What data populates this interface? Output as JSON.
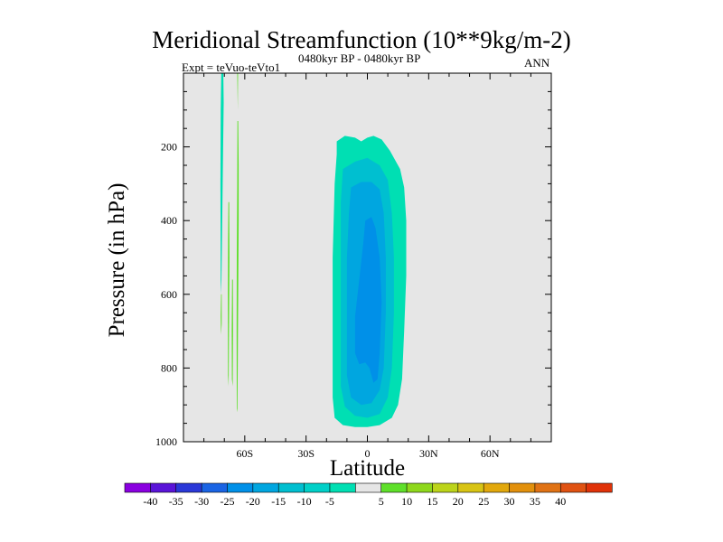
{
  "chart_data": {
    "type": "contour",
    "title": "Meridional Streamfunction (10**9kg/m-2)",
    "subtitle": "0480kyr BP - 0480kyr BP",
    "left_label": "Expt = teVuo-teVto1",
    "right_label": "ANN",
    "xlabel": "Latitude",
    "ylabel": "Pressure (in hPa)",
    "xlim": [
      -90,
      90
    ],
    "ylim": [
      1000,
      0
    ],
    "x_ticks": [
      {
        "value": -60,
        "label": "60S"
      },
      {
        "value": -30,
        "label": "30S"
      },
      {
        "value": 0,
        "label": "0"
      },
      {
        "value": 30,
        "label": "30N"
      },
      {
        "value": 60,
        "label": "60N"
      }
    ],
    "y_ticks": [
      {
        "value": 200,
        "label": "200"
      },
      {
        "value": 400,
        "label": "400"
      },
      {
        "value": 600,
        "label": "600"
      },
      {
        "value": 800,
        "label": "800"
      },
      {
        "value": 1000,
        "label": "1000"
      }
    ],
    "background_color": "#e6e6e6",
    "contour_regions": [
      {
        "level": -10,
        "color": "#00dfb3",
        "points": [
          [
            -15,
            185
          ],
          [
            -11,
            170
          ],
          [
            -6,
            175
          ],
          [
            -3,
            185
          ],
          [
            0,
            175
          ],
          [
            3,
            170
          ],
          [
            7,
            180
          ],
          [
            11,
            210
          ],
          [
            16,
            260
          ],
          [
            18,
            310
          ],
          [
            19,
            400
          ],
          [
            19,
            550
          ],
          [
            18,
            700
          ],
          [
            17,
            830
          ],
          [
            15,
            900
          ],
          [
            12,
            935
          ],
          [
            6,
            955
          ],
          [
            0,
            960
          ],
          [
            -6,
            960
          ],
          [
            -12,
            955
          ],
          [
            -16,
            935
          ],
          [
            -17,
            880
          ],
          [
            -17,
            700
          ],
          [
            -17,
            500
          ],
          [
            -16,
            300
          ],
          [
            -15,
            220
          ]
        ]
      },
      {
        "level": -15,
        "color": "#00bfd0",
        "points": [
          [
            -12,
            260
          ],
          [
            -6,
            240
          ],
          [
            0,
            230
          ],
          [
            6,
            250
          ],
          [
            10,
            290
          ],
          [
            12,
            380
          ],
          [
            13,
            500
          ],
          [
            13,
            650
          ],
          [
            12,
            800
          ],
          [
            10,
            880
          ],
          [
            6,
            925
          ],
          [
            0,
            935
          ],
          [
            -6,
            930
          ],
          [
            -11,
            905
          ],
          [
            -13,
            850
          ],
          [
            -13,
            700
          ],
          [
            -13,
            500
          ],
          [
            -13,
            350
          ]
        ]
      },
      {
        "level": -20,
        "color": "#00a6e0",
        "points": [
          [
            -8,
            310
          ],
          [
            -3,
            295
          ],
          [
            2,
            295
          ],
          [
            6,
            315
          ],
          [
            8,
            380
          ],
          [
            9,
            500
          ],
          [
            9,
            650
          ],
          [
            8,
            800
          ],
          [
            6,
            860
          ],
          [
            2,
            895
          ],
          [
            -3,
            900
          ],
          [
            -8,
            880
          ],
          [
            -10,
            820
          ],
          [
            -10,
            650
          ],
          [
            -10,
            500
          ],
          [
            -9,
            380
          ]
        ]
      },
      {
        "level": -25,
        "color": "#0090e8",
        "points": [
          [
            -1,
            400
          ],
          [
            2,
            390
          ],
          [
            4,
            420
          ],
          [
            6,
            500
          ],
          [
            7,
            620
          ],
          [
            6,
            760
          ],
          [
            5,
            830
          ],
          [
            3,
            840
          ],
          [
            1,
            800
          ],
          [
            -1,
            785
          ],
          [
            -4,
            790
          ],
          [
            -6,
            760
          ],
          [
            -6,
            660
          ],
          [
            -4,
            560
          ],
          [
            -2,
            460
          ]
        ]
      },
      {
        "level": -10,
        "color": "#00dfb3",
        "points": [
          [
            -71.5,
            0
          ],
          [
            -70.5,
            0
          ],
          [
            -70.3,
            80
          ],
          [
            -70.8,
            300
          ],
          [
            -71.2,
            480
          ],
          [
            -71.5,
            600
          ],
          [
            -71.8,
            560
          ],
          [
            -71.9,
            300
          ],
          [
            -71.8,
            100
          ]
        ]
      },
      {
        "level": 5,
        "color": "#5fe02a",
        "points": [
          [
            -63.7,
            0
          ],
          [
            -63.3,
            0
          ],
          [
            -63.4,
            100
          ]
        ]
      },
      {
        "level": 5,
        "color": "#5fe02a",
        "points": [
          [
            -63.6,
            130
          ],
          [
            -63.2,
            130
          ],
          [
            -63.0,
            250
          ],
          [
            -63.0,
            400
          ],
          [
            -63.2,
            600
          ],
          [
            -63.4,
            800
          ],
          [
            -63.6,
            920
          ],
          [
            -63.9,
            910
          ],
          [
            -64.0,
            700
          ],
          [
            -63.9,
            500
          ],
          [
            -63.7,
            300
          ]
        ]
      },
      {
        "level": 5,
        "color": "#5fe02a",
        "points": [
          [
            -68.0,
            350
          ],
          [
            -67.6,
            350
          ],
          [
            -67.5,
            500
          ],
          [
            -67.7,
            700
          ],
          [
            -67.9,
            850
          ],
          [
            -68.2,
            820
          ],
          [
            -68.3,
            600
          ],
          [
            -68.2,
            450
          ]
        ]
      },
      {
        "level": 5,
        "color": "#5fe02a",
        "points": [
          [
            -66.2,
            560
          ],
          [
            -65.8,
            560
          ],
          [
            -65.7,
            700
          ],
          [
            -65.9,
            850
          ],
          [
            -66.3,
            830
          ],
          [
            -66.4,
            700
          ]
        ]
      },
      {
        "level": 5,
        "color": "#5fe02a",
        "points": [
          [
            -71.6,
            600
          ],
          [
            -71.3,
            600
          ],
          [
            -71.3,
            680
          ],
          [
            -71.6,
            710
          ],
          [
            -71.8,
            660
          ]
        ]
      }
    ],
    "colorbar": {
      "colors": [
        "#8a00e0",
        "#5a14d8",
        "#2a38d8",
        "#1a64e4",
        "#0090e8",
        "#00a6e0",
        "#00bfd0",
        "#00d0c8",
        "#00dfb3",
        "#e6e6e6",
        "#5fe02a",
        "#8ed81c",
        "#bcd41a",
        "#d8c414",
        "#e2a80c",
        "#e2900c",
        "#e07214",
        "#e05212",
        "#e03208"
      ],
      "labels": [
        "-40",
        "-35",
        "-30",
        "-25",
        "-20",
        "-15",
        "-10",
        "-5",
        "5",
        "10",
        "15",
        "20",
        "25",
        "30",
        "35",
        "40"
      ]
    }
  }
}
